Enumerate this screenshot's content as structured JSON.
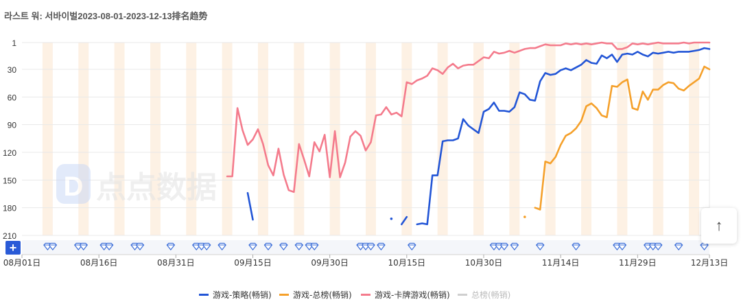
{
  "page": {
    "title": "라스트 워: 서바이벌2023-08-01-2023-12-13排名趋势"
  },
  "controls": {
    "add_label": "+",
    "scroll_top_symbol": "↑"
  },
  "watermark": {
    "text": "点点数据",
    "logo_letter": "D"
  },
  "colors": {
    "strategy": "#2255d6",
    "overall": "#f5a02a",
    "card": "#f47b8c",
    "total": "#cfcfcf",
    "band": "#fdf1e4",
    "grid": "#e8e8e8",
    "event": "#3d6fd8"
  },
  "chart_data": {
    "type": "line",
    "title": "라스트 워: 서바이벌2023-08-01-2023-12-13排名趋势",
    "x_start": "2023-08-01",
    "x_end": "2023-12-13",
    "x_ticks": [
      "08月01日",
      "08月16日",
      "08月31日",
      "09月15日",
      "09月30日",
      "10月15日",
      "10月30日",
      "11月14日",
      "11月29日",
      "12月13日"
    ],
    "y_axis": {
      "inverted": true,
      "ticks": [
        "1",
        "30",
        "60",
        "90",
        "120",
        "150",
        "180",
        "210"
      ],
      "range": [
        1,
        210
      ]
    },
    "grid": true,
    "legend_position": "bottom",
    "weekend_bands": true,
    "series": [
      {
        "name": "游戏-策略(畅销)",
        "color_key": "strategy",
        "segments": [
          [
            [
              "2023-09-14",
              164
            ],
            [
              "2023-09-15",
              193
            ]
          ],
          [
            [
              "2023-10-12",
              192
            ]
          ],
          [
            [
              "2023-10-14",
              198
            ],
            [
              "2023-10-15",
              190
            ]
          ],
          [
            [
              "2023-10-17",
              198
            ],
            [
              "2023-10-18",
              197
            ],
            [
              "2023-10-19",
              198
            ],
            [
              "2023-10-20",
              145
            ],
            [
              "2023-10-21",
              145
            ],
            [
              "2023-10-22",
              108
            ],
            [
              "2023-10-23",
              107
            ],
            [
              "2023-10-24",
              107
            ],
            [
              "2023-10-25",
              105
            ],
            [
              "2023-10-26",
              84
            ],
            [
              "2023-10-27",
              91
            ],
            [
              "2023-10-28",
              95
            ],
            [
              "2023-10-29",
              99
            ],
            [
              "2023-10-30",
              76
            ],
            [
              "2023-10-31",
              73
            ],
            [
              "2023-11-01",
              66
            ],
            [
              "2023-11-02",
              75
            ],
            [
              "2023-11-03",
              75
            ],
            [
              "2023-11-04",
              76
            ],
            [
              "2023-11-05",
              71
            ],
            [
              "2023-11-06",
              55
            ],
            [
              "2023-11-07",
              57
            ],
            [
              "2023-11-08",
              63
            ],
            [
              "2023-11-09",
              64
            ],
            [
              "2023-11-10",
              43
            ],
            [
              "2023-11-11",
              34
            ],
            [
              "2023-11-12",
              36
            ],
            [
              "2023-11-13",
              35
            ],
            [
              "2023-11-14",
              31
            ],
            [
              "2023-11-15",
              29
            ],
            [
              "2023-11-16",
              31
            ],
            [
              "2023-11-17",
              28
            ],
            [
              "2023-11-18",
              25
            ],
            [
              "2023-11-19",
              20
            ],
            [
              "2023-11-20",
              23
            ],
            [
              "2023-11-21",
              24
            ],
            [
              "2023-11-22",
              15
            ],
            [
              "2023-11-23",
              18
            ],
            [
              "2023-11-24",
              14
            ],
            [
              "2023-11-25",
              22
            ],
            [
              "2023-11-26",
              14
            ],
            [
              "2023-11-27",
              13
            ],
            [
              "2023-11-28",
              14
            ],
            [
              "2023-11-29",
              11
            ],
            [
              "2023-11-30",
              14
            ],
            [
              "2023-12-01",
              16
            ],
            [
              "2023-12-02",
              12
            ],
            [
              "2023-12-03",
              13
            ],
            [
              "2023-12-04",
              12
            ],
            [
              "2023-12-05",
              11
            ],
            [
              "2023-12-06",
              12
            ],
            [
              "2023-12-07",
              11
            ],
            [
              "2023-12-08",
              11
            ],
            [
              "2023-12-09",
              11
            ],
            [
              "2023-12-10",
              10
            ],
            [
              "2023-12-11",
              9
            ],
            [
              "2023-12-12",
              7
            ],
            [
              "2023-12-13",
              8
            ]
          ]
        ]
      },
      {
        "name": "游戏-总榜(畅销)",
        "color_key": "overall",
        "segments": [
          [
            [
              "2023-11-07",
              190
            ]
          ],
          [
            [
              "2023-11-09",
              180
            ],
            [
              "2023-11-10",
              182
            ],
            [
              "2023-11-11",
              130
            ],
            [
              "2023-11-12",
              132
            ],
            [
              "2023-11-13",
              125
            ],
            [
              "2023-11-14",
              112
            ],
            [
              "2023-11-15",
              102
            ],
            [
              "2023-11-16",
              99
            ],
            [
              "2023-11-17",
              94
            ],
            [
              "2023-11-18",
              86
            ],
            [
              "2023-11-19",
              70
            ],
            [
              "2023-11-20",
              67
            ],
            [
              "2023-11-21",
              72
            ],
            [
              "2023-11-22",
              80
            ],
            [
              "2023-11-23",
              82
            ],
            [
              "2023-11-24",
              48
            ],
            [
              "2023-11-25",
              49
            ],
            [
              "2023-11-26",
              44
            ],
            [
              "2023-11-27",
              41
            ],
            [
              "2023-11-28",
              72
            ],
            [
              "2023-11-29",
              74
            ],
            [
              "2023-11-30",
              54
            ],
            [
              "2023-12-01",
              63
            ],
            [
              "2023-12-02",
              52
            ],
            [
              "2023-12-03",
              52
            ],
            [
              "2023-12-04",
              47
            ],
            [
              "2023-12-05",
              44
            ],
            [
              "2023-12-06",
              45
            ],
            [
              "2023-12-07",
              51
            ],
            [
              "2023-12-08",
              53
            ],
            [
              "2023-12-09",
              48
            ],
            [
              "2023-12-10",
              44
            ],
            [
              "2023-12-11",
              40
            ],
            [
              "2023-12-12",
              27
            ],
            [
              "2023-12-13",
              30
            ]
          ]
        ]
      },
      {
        "name": "游戏-卡牌游戏(畅销)",
        "color_key": "card",
        "segments": [
          [
            [
              "2023-09-10",
              146
            ],
            [
              "2023-09-11",
              146
            ],
            [
              "2023-09-12",
              72
            ],
            [
              "2023-09-13",
              96
            ],
            [
              "2023-09-14",
              112
            ],
            [
              "2023-09-15",
              106
            ],
            [
              "2023-09-16",
              95
            ],
            [
              "2023-09-17",
              111
            ],
            [
              "2023-09-18",
              134
            ],
            [
              "2023-09-19",
              145
            ],
            [
              "2023-09-20",
              116
            ],
            [
              "2023-09-21",
              144
            ],
            [
              "2023-09-22",
              161
            ],
            [
              "2023-09-23",
              163
            ],
            [
              "2023-09-24",
              111
            ],
            [
              "2023-09-25",
              128
            ],
            [
              "2023-09-26",
              146
            ],
            [
              "2023-09-27",
              109
            ],
            [
              "2023-09-28",
              119
            ],
            [
              "2023-09-29",
              101
            ],
            [
              "2023-09-30",
              147
            ],
            [
              "2023-10-01",
              97
            ],
            [
              "2023-10-02",
              147
            ],
            [
              "2023-10-03",
              131
            ],
            [
              "2023-10-04",
              103
            ],
            [
              "2023-10-05",
              97
            ],
            [
              "2023-10-06",
              102
            ],
            [
              "2023-10-07",
              118
            ],
            [
              "2023-10-08",
              109
            ],
            [
              "2023-10-09",
              80
            ],
            [
              "2023-10-10",
              79
            ],
            [
              "2023-10-11",
              71
            ],
            [
              "2023-10-12",
              79
            ],
            [
              "2023-10-13",
              77
            ],
            [
              "2023-10-14",
              81
            ],
            [
              "2023-10-15",
              44
            ],
            [
              "2023-10-16",
              46
            ],
            [
              "2023-10-17",
              42
            ],
            [
              "2023-10-18",
              40
            ],
            [
              "2023-10-19",
              37
            ],
            [
              "2023-10-20",
              29
            ],
            [
              "2023-10-21",
              31
            ],
            [
              "2023-10-22",
              35
            ],
            [
              "2023-10-23",
              28
            ],
            [
              "2023-10-24",
              24
            ],
            [
              "2023-10-25",
              29
            ],
            [
              "2023-10-26",
              26
            ],
            [
              "2023-10-27",
              25
            ],
            [
              "2023-10-28",
              25
            ],
            [
              "2023-10-29",
              21
            ],
            [
              "2023-10-30",
              17
            ],
            [
              "2023-10-31",
              18
            ],
            [
              "2023-11-01",
              11
            ],
            [
              "2023-11-02",
              13
            ],
            [
              "2023-11-03",
              12
            ],
            [
              "2023-11-04",
              10
            ],
            [
              "2023-11-05",
              12
            ],
            [
              "2023-11-06",
              10
            ],
            [
              "2023-11-07",
              8
            ],
            [
              "2023-11-08",
              7
            ],
            [
              "2023-11-09",
              7
            ],
            [
              "2023-11-10",
              5
            ],
            [
              "2023-11-11",
              3
            ],
            [
              "2023-11-12",
              4
            ],
            [
              "2023-11-13",
              4
            ],
            [
              "2023-11-14",
              4
            ],
            [
              "2023-11-15",
              2
            ],
            [
              "2023-11-16",
              3
            ],
            [
              "2023-11-17",
              2
            ],
            [
              "2023-11-18",
              3
            ],
            [
              "2023-11-19",
              2
            ],
            [
              "2023-11-20",
              3
            ],
            [
              "2023-11-21",
              2
            ],
            [
              "2023-11-22",
              1
            ],
            [
              "2023-11-23",
              2
            ],
            [
              "2023-11-24",
              2
            ],
            [
              "2023-11-25",
              8
            ],
            [
              "2023-11-26",
              8
            ],
            [
              "2023-11-27",
              6
            ],
            [
              "2023-11-28",
              2
            ],
            [
              "2023-11-29",
              3
            ],
            [
              "2023-11-30",
              2
            ],
            [
              "2023-12-01",
              3
            ],
            [
              "2023-12-02",
              2
            ],
            [
              "2023-12-03",
              1
            ],
            [
              "2023-12-04",
              2
            ],
            [
              "2023-12-05",
              2
            ],
            [
              "2023-12-06",
              2
            ],
            [
              "2023-12-07",
              2
            ],
            [
              "2023-12-08",
              1
            ],
            [
              "2023-12-09",
              2
            ],
            [
              "2023-12-10",
              1
            ],
            [
              "2023-12-11",
              1
            ],
            [
              "2023-12-12",
              1
            ],
            [
              "2023-12-13",
              1
            ]
          ]
        ]
      },
      {
        "name": "总榜(畅销)",
        "color_key": "total",
        "segments": []
      }
    ],
    "event_markers": [
      "2023-08-06",
      "2023-08-07",
      "2023-08-12",
      "2023-08-13",
      "2023-08-17",
      "2023-08-18",
      "2023-08-23",
      "2023-08-24",
      "2023-08-30",
      "2023-09-04",
      "2023-09-05",
      "2023-09-06",
      "2023-09-09",
      "2023-09-15",
      "2023-09-18",
      "2023-09-21",
      "2023-09-24",
      "2023-09-26",
      "2023-09-27",
      "2023-10-06",
      "2023-10-07",
      "2023-10-08",
      "2023-10-10",
      "2023-10-16",
      "2023-11-01",
      "2023-11-02",
      "2023-11-03",
      "2023-11-05",
      "2023-11-10",
      "2023-11-17",
      "2023-11-25",
      "2023-11-26",
      "2023-12-01",
      "2023-12-02",
      "2023-12-03",
      "2023-12-07",
      "2023-12-12"
    ]
  }
}
